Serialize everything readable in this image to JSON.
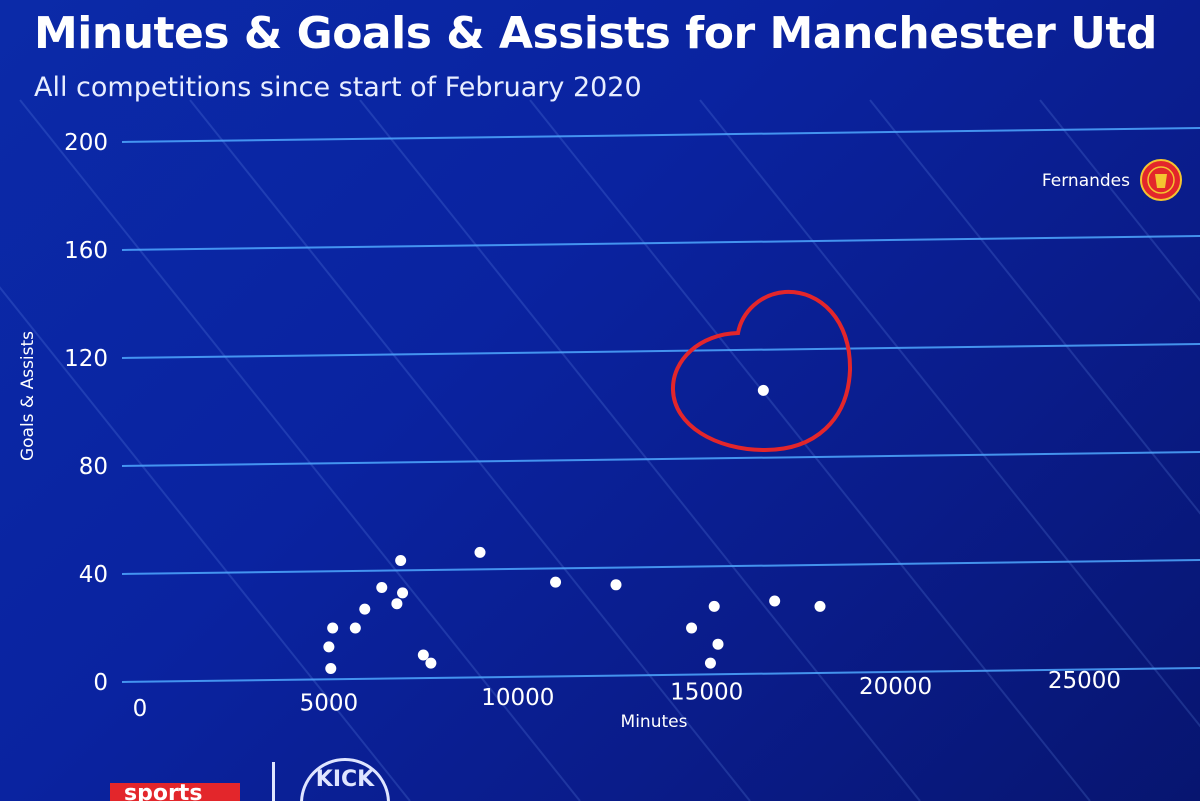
{
  "chart_data": {
    "type": "scatter",
    "title": "Minutes & Goals & Assists for Manchester Utd",
    "subtitle": "All competitions since start of February 2020",
    "xlabel": "Minutes",
    "ylabel": "Goals & Assists",
    "xlim": [
      0,
      27000
    ],
    "ylim": [
      0,
      200
    ],
    "xticks": [
      "0",
      "5000",
      "10000",
      "15000",
      "20000",
      "25000"
    ],
    "yticks": [
      "0",
      "40",
      "80",
      "120",
      "160",
      "200"
    ],
    "grid": true,
    "legend": "top-right",
    "legend_entries": [
      "Fernandes"
    ],
    "highlighted_point": {
      "x": 16500,
      "y": 108
    },
    "points": [
      {
        "x": 5050,
        "y": 5
      },
      {
        "x": 5000,
        "y": 13
      },
      {
        "x": 5100,
        "y": 20
      },
      {
        "x": 5700,
        "y": 20
      },
      {
        "x": 5950,
        "y": 27
      },
      {
        "x": 6400,
        "y": 35
      },
      {
        "x": 6800,
        "y": 29
      },
      {
        "x": 6950,
        "y": 33
      },
      {
        "x": 6900,
        "y": 45
      },
      {
        "x": 7500,
        "y": 10
      },
      {
        "x": 7700,
        "y": 7
      },
      {
        "x": 9000,
        "y": 48
      },
      {
        "x": 11000,
        "y": 37
      },
      {
        "x": 12600,
        "y": 36
      },
      {
        "x": 14600,
        "y": 20
      },
      {
        "x": 15200,
        "y": 28
      },
      {
        "x": 15300,
        "y": 14
      },
      {
        "x": 15100,
        "y": 7
      },
      {
        "x": 16800,
        "y": 30
      },
      {
        "x": 18000,
        "y": 28
      },
      {
        "x": 16500,
        "y": 108
      }
    ],
    "colors": {
      "point": "#ffffff",
      "grid": "#4fa8ff",
      "highlight": "#e3262b",
      "background": "#0b2aa8"
    }
  },
  "brand": {
    "left_badge": "sports",
    "right_logo": "KICK"
  }
}
